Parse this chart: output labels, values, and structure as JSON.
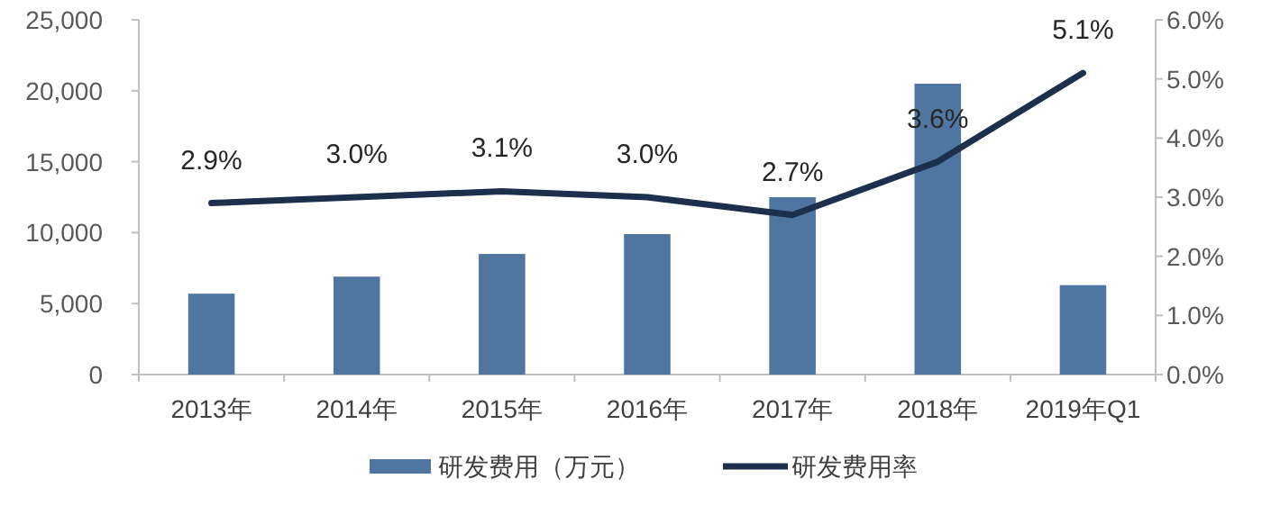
{
  "chart_data": {
    "type": "bar",
    "categories": [
      "2013年",
      "2014年",
      "2015年",
      "2016年",
      "2017年",
      "2018年",
      "2019年Q1"
    ],
    "series": [
      {
        "name": "研发费用（万元）",
        "color": "#4f76a0",
        "values": [
          5700,
          6900,
          8500,
          9900,
          12500,
          20500,
          6300
        ]
      },
      {
        "name": "研发费用率",
        "type": "line",
        "axis": "y2",
        "color": "#1c2f4d",
        "values": [
          2.9,
          3.0,
          3.1,
          3.0,
          2.7,
          3.6,
          5.1
        ],
        "value_labels": [
          "2.9%",
          "3.0%",
          "3.1%",
          "3.0%",
          "2.7%",
          "3.6%",
          "5.1%"
        ]
      }
    ],
    "ylim": [
      0,
      25000
    ],
    "yticks": [
      0,
      {
        "value": 5000,
        "label": "5,000"
      },
      {
        "value": 10000,
        "label": "10,000"
      },
      {
        "value": 15000,
        "label": "15,000"
      },
      {
        "value": 20000,
        "label": "20,000"
      },
      {
        "value": 25000,
        "label": "25,000"
      }
    ],
    "y2lim": [
      0,
      6
    ],
    "y2ticks": [
      {
        "value": 0,
        "label": "0.0%"
      },
      {
        "value": 1,
        "label": "1.0%"
      },
      {
        "value": 2,
        "label": "2.0%"
      },
      {
        "value": 3,
        "label": "3.0%"
      },
      {
        "value": 4,
        "label": "4.0%"
      },
      {
        "value": 5,
        "label": "5.0%"
      },
      {
        "value": 6,
        "label": "6.0%"
      }
    ],
    "grid": false,
    "legend": "bottom",
    "marker": "none",
    "line_style": "solid"
  }
}
